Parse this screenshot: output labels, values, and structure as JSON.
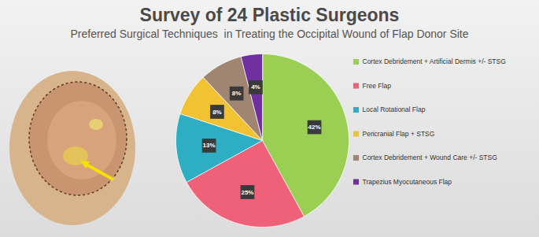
{
  "chart_data": {
    "type": "pie",
    "title": "Survey of 24 Plastic Surgeons",
    "subtitle": "Preferred Surgical Techniques  in Treating the Occipital Wound of Flap Donor Site",
    "categories": [
      "Cortex Debridement + Artificial Dermis +/- STSG",
      "Free Flap",
      "Local Rotational Flap",
      "Pericranial Flap + STSG",
      "Cortex Debridement + Wound Care +/- STSG",
      "Trapezius Myocutaneous Flap"
    ],
    "values": [
      42,
      25,
      13,
      8,
      8,
      4
    ],
    "value_labels": [
      "42%",
      "25%",
      "13%",
      "8%",
      "8%",
      "4%"
    ],
    "colors": [
      "#9bcf53",
      "#ef6079",
      "#2eaec2",
      "#f1c232",
      "#a08573",
      "#7030a0"
    ],
    "data_labels": true,
    "legend": "right"
  }
}
